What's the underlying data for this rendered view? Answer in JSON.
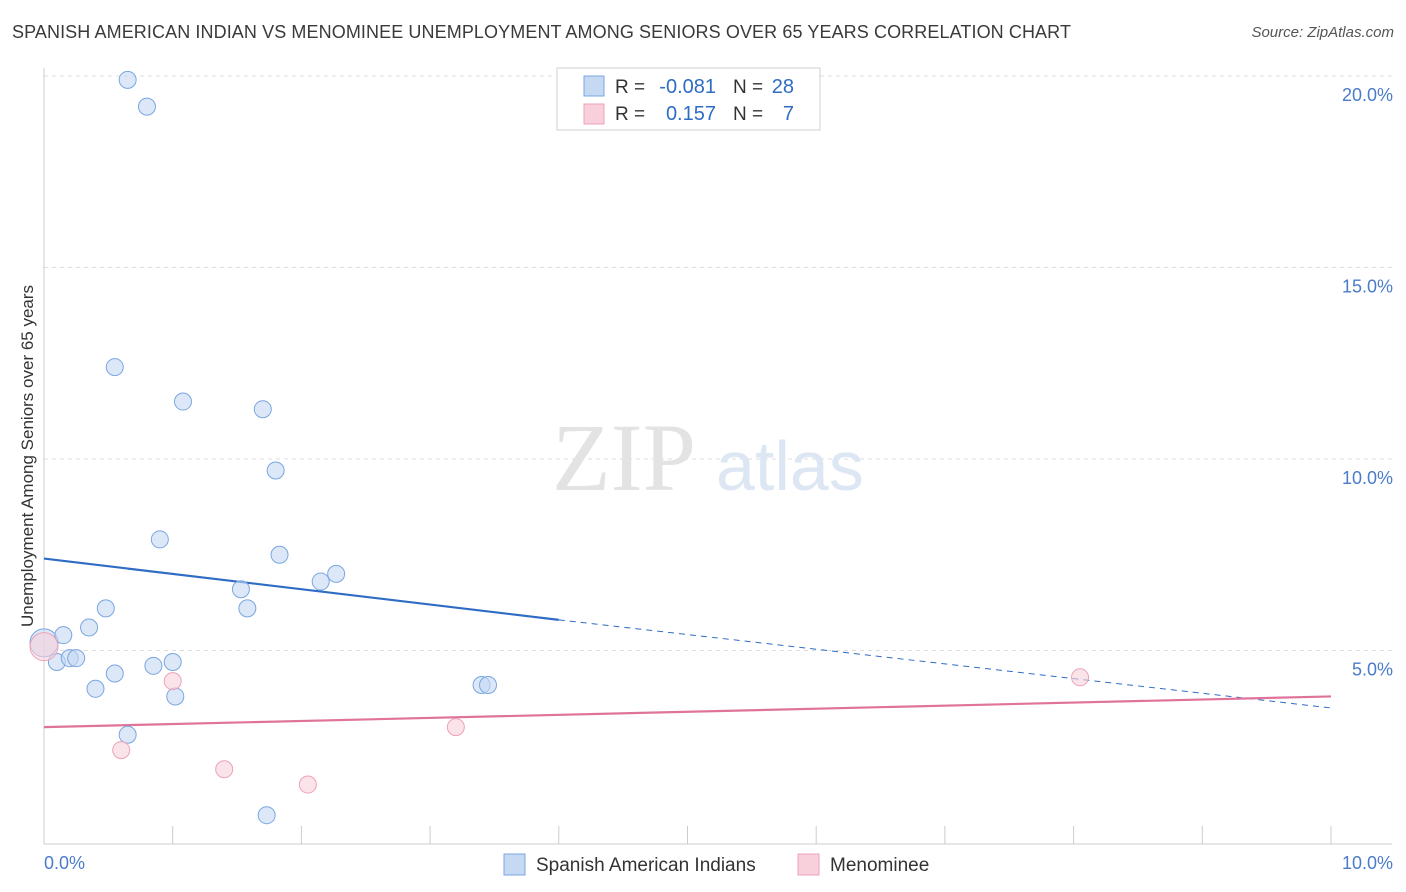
{
  "title": "SPANISH AMERICAN INDIAN VS MENOMINEE UNEMPLOYMENT AMONG SENIORS OVER 65 YEARS CORRELATION CHART",
  "source": "Source: ZipAtlas.com",
  "watermark": {
    "zip": "ZIP",
    "atlas": "atlas"
  },
  "chart_data": {
    "type": "scatter",
    "xlabel": "",
    "ylabel": "Unemployment Among Seniors over 65 years",
    "xlim": [
      0,
      10
    ],
    "ylim": [
      0,
      20
    ],
    "x_tick_labels": {
      "min": "0.0%",
      "max": "10.0%"
    },
    "y_ticks": [
      {
        "value": 5,
        "label": "5.0%"
      },
      {
        "value": 10,
        "label": "10.0%"
      },
      {
        "value": 15,
        "label": "15.0%"
      },
      {
        "value": 20,
        "label": "20.0%"
      }
    ],
    "legend_stats": [
      {
        "r_label": "R =",
        "r_value": "-0.081",
        "n_label": "N =",
        "n_value": "28"
      },
      {
        "r_label": "R =",
        "r_value": "0.157",
        "n_label": "N =",
        "n_value": "7"
      }
    ],
    "series": [
      {
        "name": "Spanish American Indians",
        "color": "#7aa6e0",
        "fill": "#c5d9f3",
        "line_color": "#2f6cc4",
        "trend": {
          "x0": 0,
          "y0": 7.4,
          "x1": 4.0,
          "y1": 5.8,
          "dash_to_x": 10.0,
          "dash_to_y": 3.5
        },
        "points": [
          [
            0.0,
            5.2
          ],
          [
            0.1,
            4.7
          ],
          [
            0.15,
            5.4
          ],
          [
            0.2,
            4.8
          ],
          [
            0.25,
            4.8
          ],
          [
            0.35,
            5.6
          ],
          [
            0.4,
            4.0
          ],
          [
            0.48,
            6.1
          ],
          [
            0.55,
            4.4
          ],
          [
            0.65,
            2.8
          ],
          [
            0.55,
            12.4
          ],
          [
            0.65,
            19.9
          ],
          [
            0.8,
            19.2
          ],
          [
            0.85,
            4.6
          ],
          [
            0.9,
            7.9
          ],
          [
            1.0,
            4.7
          ],
          [
            1.02,
            3.8
          ],
          [
            1.08,
            11.5
          ],
          [
            1.53,
            6.6
          ],
          [
            1.58,
            6.1
          ],
          [
            1.7,
            11.3
          ],
          [
            1.73,
            0.7
          ],
          [
            1.8,
            9.7
          ],
          [
            1.83,
            7.5
          ],
          [
            2.15,
            6.8
          ],
          [
            2.27,
            7.0
          ],
          [
            3.4,
            4.1
          ],
          [
            3.45,
            4.1
          ]
        ]
      },
      {
        "name": "Menominee",
        "color": "#eea2b9",
        "fill": "#f8d0dc",
        "line_color": "#e0739a",
        "trend": {
          "x0": 0,
          "y0": 3.0,
          "x1": 10.0,
          "y1": 3.8
        },
        "points": [
          [
            0.0,
            5.1
          ],
          [
            0.6,
            2.4
          ],
          [
            1.0,
            4.2
          ],
          [
            1.4,
            1.9
          ],
          [
            2.05,
            1.5
          ],
          [
            3.2,
            3.0
          ],
          [
            8.05,
            4.3
          ]
        ]
      }
    ]
  }
}
